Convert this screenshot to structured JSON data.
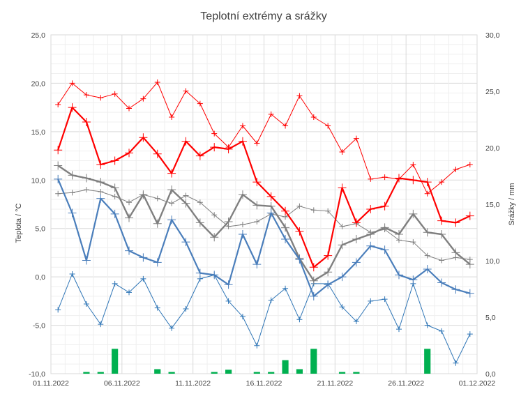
{
  "chart_data": {
    "type": "line",
    "title": "Teplotní extrémy a srážky",
    "ylabel": "Teplota / °C",
    "y2label": "Srážky / mm",
    "ylim": [
      -10,
      25
    ],
    "y2lim": [
      0,
      30
    ],
    "yticks": [
      "25,0",
      "20,0",
      "15,0",
      "10,0",
      "5,0",
      "0,0",
      "-5,0",
      "-10,0"
    ],
    "y2ticks": [
      "30,0",
      "25,0",
      "20,0",
      "15,0",
      "10,0",
      "5,0",
      "0,0"
    ],
    "xticks": [
      "01.11.2022",
      "06.11.2022",
      "11.11.2022",
      "16.11.2022",
      "21.11.2022",
      "26.11.2022",
      "01.12.2022"
    ],
    "grid": true,
    "colors": {
      "max_abs": "#ff0000",
      "max_avg": "#ff0000",
      "avg": "#7f7f7f",
      "avg_normal": "#7f7f7f",
      "min_avg": "#4a7ebb",
      "min_abs": "#2e75b6",
      "precip": "#00b050"
    },
    "series": [
      {
        "values": [
          17.8,
          20.0,
          18.8,
          18.5,
          18.9,
          17.4,
          18.4,
          20.1,
          16.5,
          19.2,
          17.9,
          14.8,
          13.4,
          15.6,
          13.8,
          16.8,
          15.6,
          18.7,
          16.5,
          15.6,
          12.9,
          14.3,
          10.1,
          10.3,
          10.1,
          11.6,
          8.6,
          9.8,
          11.1,
          11.6
        ]
      },
      {
        "values": [
          13.1,
          17.5,
          16.0,
          11.6,
          12.0,
          12.8,
          14.4,
          12.7,
          10.7,
          14.0,
          12.5,
          13.4,
          13.2,
          14.0,
          9.8,
          8.3,
          6.8,
          4.7,
          1.0,
          2.2,
          9.2,
          5.6,
          7.0,
          7.3,
          10.2,
          10.0,
          9.8,
          5.8,
          5.6,
          6.3
        ]
      },
      {
        "values": [
          11.5,
          10.5,
          10.2,
          9.8,
          9.2,
          6.1,
          8.5,
          5.5,
          9.0,
          7.6,
          5.6,
          4.1,
          5.7,
          8.5,
          7.4,
          7.3,
          5.1,
          1.9,
          -0.4,
          0.5,
          3.3,
          3.9,
          4.4,
          5.1,
          4.4,
          6.5,
          4.6,
          4.4,
          2.5,
          1.3
        ]
      },
      {
        "values": [
          8.6,
          8.7,
          9.0,
          8.8,
          8.3,
          7.7,
          8.5,
          8.1,
          7.6,
          8.4,
          7.7,
          6.4,
          5.2,
          5.4,
          5.7,
          6.5,
          6.2,
          7.3,
          6.9,
          6.8,
          5.2,
          5.5,
          4.6,
          4.9,
          3.8,
          3.6,
          2.2,
          1.7,
          2.0,
          1.8
        ]
      },
      {
        "values": [
          10.1,
          6.6,
          1.7,
          8.1,
          6.5,
          2.7,
          2.0,
          1.5,
          5.9,
          3.6,
          0.4,
          0.2,
          -0.8,
          4.4,
          1.3,
          6.6,
          3.9,
          1.8,
          -2.0,
          -0.8,
          0.0,
          1.5,
          3.2,
          2.8,
          0.2,
          -0.3,
          0.8,
          -0.6,
          -1.3,
          -1.7
        ]
      },
      {
        "values": [
          -3.4,
          0.3,
          -2.8,
          -4.9,
          -0.7,
          -1.6,
          -0.2,
          -3.2,
          -5.3,
          -3.3,
          -0.2,
          0.2,
          -2.5,
          -4.1,
          -7.1,
          -2.4,
          -1.2,
          -4.4,
          -0.7,
          -0.7,
          -3.1,
          -4.6,
          -2.5,
          -2.3,
          -5.4,
          -0.7,
          -5.0,
          -5.6,
          -8.9,
          -5.9
        ]
      },
      {
        "axis": "right",
        "kind": "bar",
        "values": [
          0.0,
          0.0,
          0.15,
          0.15,
          2.2,
          0.0,
          0.0,
          0.4,
          0.15,
          0.0,
          0.0,
          0.15,
          0.35,
          0.0,
          0.15,
          0.15,
          1.2,
          0.4,
          2.2,
          0.0,
          0.15,
          0.15,
          0.0,
          0.0,
          0.0,
          0.0,
          2.2,
          0.0,
          0.0,
          0.0
        ]
      }
    ]
  }
}
